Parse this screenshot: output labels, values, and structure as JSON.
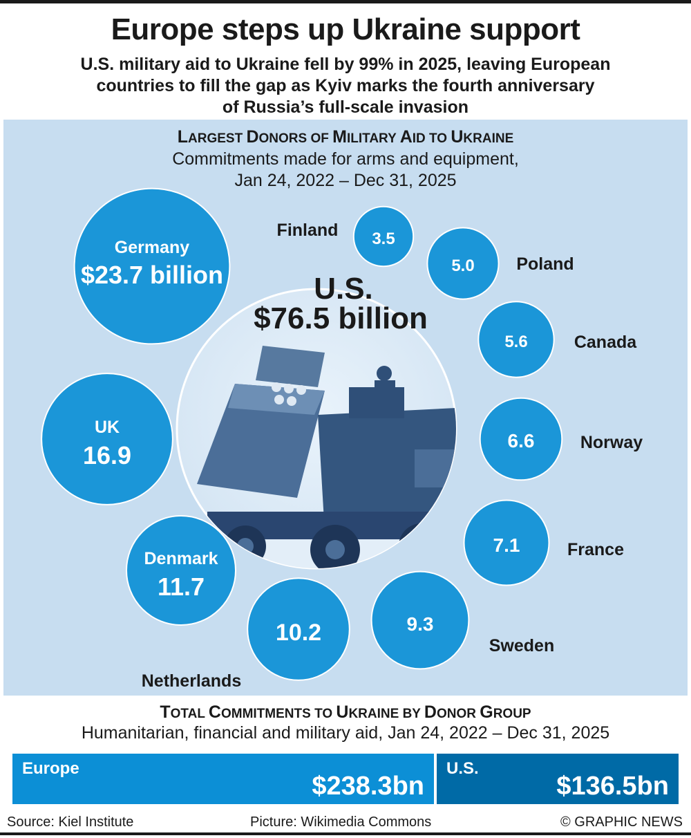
{
  "header": {
    "title": "Europe steps up Ukraine support",
    "subtitle_lines": [
      "U.S. military aid to Ukraine fell by 99% in 2025, leaving European",
      "countries to fill the gap as Kyiv marks the fourth anniversary",
      "of Russia’s full-scale invasion"
    ]
  },
  "section1": {
    "title_cap1": "L",
    "title_rest1": "ARGEST ",
    "title_cap2": "D",
    "title_rest2": "ONORS OF ",
    "title_cap3": "M",
    "title_rest3": "ILITARY ",
    "title_cap4": "A",
    "title_rest4": "ID TO ",
    "title_cap5": "U",
    "title_rest5": "KRAINE",
    "sub_line1": "Commitments made for arms and equipment,",
    "sub_line2": "Jan 24, 2022 – Dec 31, 2025"
  },
  "chart_data": [
    {
      "type": "bubble",
      "title": "Largest Donors of Military Aid to Ukraine",
      "subtitle": "Commitments made for arms and equipment, Jan 24, 2022 – Dec 31, 2025",
      "unit": "$ billion",
      "bubbles": [
        {
          "name": "U.S.",
          "value": 76.5,
          "label": "$76.5 billion"
        },
        {
          "name": "Germany",
          "value": 23.7,
          "label": "$23.7 billion"
        },
        {
          "name": "UK",
          "value": 16.9,
          "label": "16.9"
        },
        {
          "name": "Denmark",
          "value": 11.7,
          "label": "11.7"
        },
        {
          "name": "Netherlands",
          "value": 10.2,
          "label": "10.2"
        },
        {
          "name": "Sweden",
          "value": 9.3,
          "label": "9.3"
        },
        {
          "name": "France",
          "value": 7.1,
          "label": "7.1"
        },
        {
          "name": "Norway",
          "value": 6.6,
          "label": "6.6"
        },
        {
          "name": "Canada",
          "value": 5.6,
          "label": "5.6"
        },
        {
          "name": "Poland",
          "value": 5.0,
          "label": "5.0"
        },
        {
          "name": "Finland",
          "value": 3.5,
          "label": "3.5"
        }
      ]
    },
    {
      "type": "bar",
      "title": "Total Commitments to Ukraine by Donor Group",
      "subtitle": "Humanitarian, financial and military aid, Jan 24, 2022 – Dec 31, 2025",
      "categories": [
        "Europe",
        "U.S."
      ],
      "values": [
        238.3,
        136.5
      ],
      "labels": [
        "$238.3bn",
        "$136.5bn"
      ]
    }
  ],
  "section2": {
    "title_cap1": "T",
    "title_rest1": "OTAL ",
    "title_cap2": "C",
    "title_rest2": "OMMITMENTS TO ",
    "title_cap3": "U",
    "title_rest3": "KRAINE BY ",
    "title_cap4": "D",
    "title_rest4": "ONOR ",
    "title_cap5": "G",
    "title_rest5": "ROUP",
    "sub_line": "Humanitarian, financial and military aid, Jan 24, 2022 – Dec 31, 2025"
  },
  "colors": {
    "bubble": "#0c8fd6",
    "panel": "#c7ddf0",
    "europe_bar": "#0c8fd6",
    "us_bar": "#006aa6",
    "text": "#1a1a1a"
  },
  "footer": {
    "source": "Source: Kiel Institute",
    "picture": "Picture: Wikimedia Commons",
    "credit": "© GRAPHIC NEWS"
  }
}
